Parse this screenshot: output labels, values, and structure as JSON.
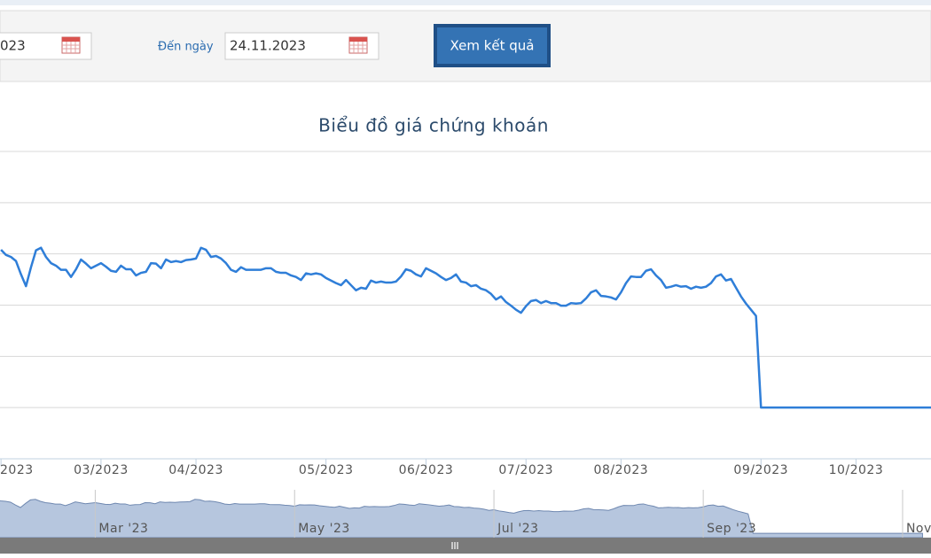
{
  "header": {
    "from_date": "023",
    "to_label": "Đến ngày",
    "to_date": "24.11.2023",
    "submit": "Xem kết quả"
  },
  "chart_data": {
    "type": "line",
    "title": "Biểu đồ giá chứng khoán",
    "color": "#2f7ed8",
    "grid": true,
    "show_ytick_labels": false,
    "xlim": [
      -0.2,
      186
    ],
    "ylim": [
      0,
      6
    ],
    "yticks": [
      1,
      2,
      3,
      4,
      5,
      6
    ],
    "xticks": [
      {
        "value": 0,
        "label": "2023"
      },
      {
        "value": 20,
        "label": "03/2023"
      },
      {
        "value": 39,
        "label": "04/2023"
      },
      {
        "value": 65,
        "label": "05/2023"
      },
      {
        "value": 85,
        "label": "06/2023"
      },
      {
        "value": 105,
        "label": "07/2023"
      },
      {
        "value": 124,
        "label": "08/2023"
      },
      {
        "value": 152,
        "label": "09/2023"
      },
      {
        "value": 171,
        "label": "10/2023"
      }
    ],
    "values": [
      4.08,
      3.98,
      3.94,
      3.86,
      3.6,
      3.37,
      3.74,
      4.07,
      4.12,
      3.94,
      3.82,
      3.77,
      3.69,
      3.69,
      3.55,
      3.7,
      3.89,
      3.81,
      3.72,
      3.77,
      3.82,
      3.75,
      3.67,
      3.65,
      3.77,
      3.7,
      3.7,
      3.58,
      3.63,
      3.65,
      3.82,
      3.81,
      3.72,
      3.89,
      3.84,
      3.86,
      3.84,
      3.88,
      3.89,
      3.91,
      4.12,
      4.08,
      3.94,
      3.96,
      3.91,
      3.82,
      3.69,
      3.65,
      3.74,
      3.69,
      3.69,
      3.69,
      3.69,
      3.72,
      3.72,
      3.65,
      3.63,
      3.63,
      3.58,
      3.55,
      3.49,
      3.62,
      3.6,
      3.62,
      3.6,
      3.53,
      3.48,
      3.43,
      3.39,
      3.49,
      3.39,
      3.29,
      3.34,
      3.32,
      3.48,
      3.44,
      3.46,
      3.44,
      3.44,
      3.46,
      3.56,
      3.7,
      3.67,
      3.6,
      3.56,
      3.72,
      3.67,
      3.62,
      3.55,
      3.49,
      3.53,
      3.6,
      3.46,
      3.44,
      3.37,
      3.39,
      3.32,
      3.29,
      3.22,
      3.11,
      3.17,
      3.06,
      2.99,
      2.91,
      2.85,
      2.98,
      3.08,
      3.1,
      3.04,
      3.08,
      3.04,
      3.04,
      2.99,
      2.99,
      3.04,
      3.03,
      3.04,
      3.13,
      3.25,
      3.29,
      3.18,
      3.17,
      3.15,
      3.11,
      3.25,
      3.43,
      3.56,
      3.55,
      3.55,
      3.67,
      3.7,
      3.58,
      3.49,
      3.34,
      3.36,
      3.39,
      3.36,
      3.37,
      3.32,
      3.36,
      3.34,
      3.36,
      3.43,
      3.56,
      3.6,
      3.48,
      3.51,
      3.34,
      3.17,
      3.03,
      2.91,
      2.79,
      1.0,
      1.0,
      1.0,
      1.0,
      1.0,
      1.0,
      1.0,
      1.0,
      1.0,
      1.0,
      1.0,
      1.0,
      1.0,
      1.0,
      1.0,
      1.0,
      1.0,
      1.0,
      1.0,
      1.0,
      1.0,
      1.0,
      1.0,
      1.0,
      1.0,
      1.0,
      1.0,
      1.0,
      1.0,
      1.0,
      1.0,
      1.0,
      1.0,
      1.0,
      1.0
    ],
    "navigator": {
      "type": "area",
      "xlim": [
        0.89,
        187.7
      ],
      "ylim": [
        0.6,
        5.0
      ],
      "xticks": [
        {
          "value": 20,
          "label": "Mar '23"
        },
        {
          "value": 60,
          "label": "May '23"
        },
        {
          "value": 100,
          "label": "Jul '23"
        },
        {
          "value": 142,
          "label": "Sep '23"
        },
        {
          "value": 182,
          "label": "Nov"
        }
      ]
    }
  }
}
